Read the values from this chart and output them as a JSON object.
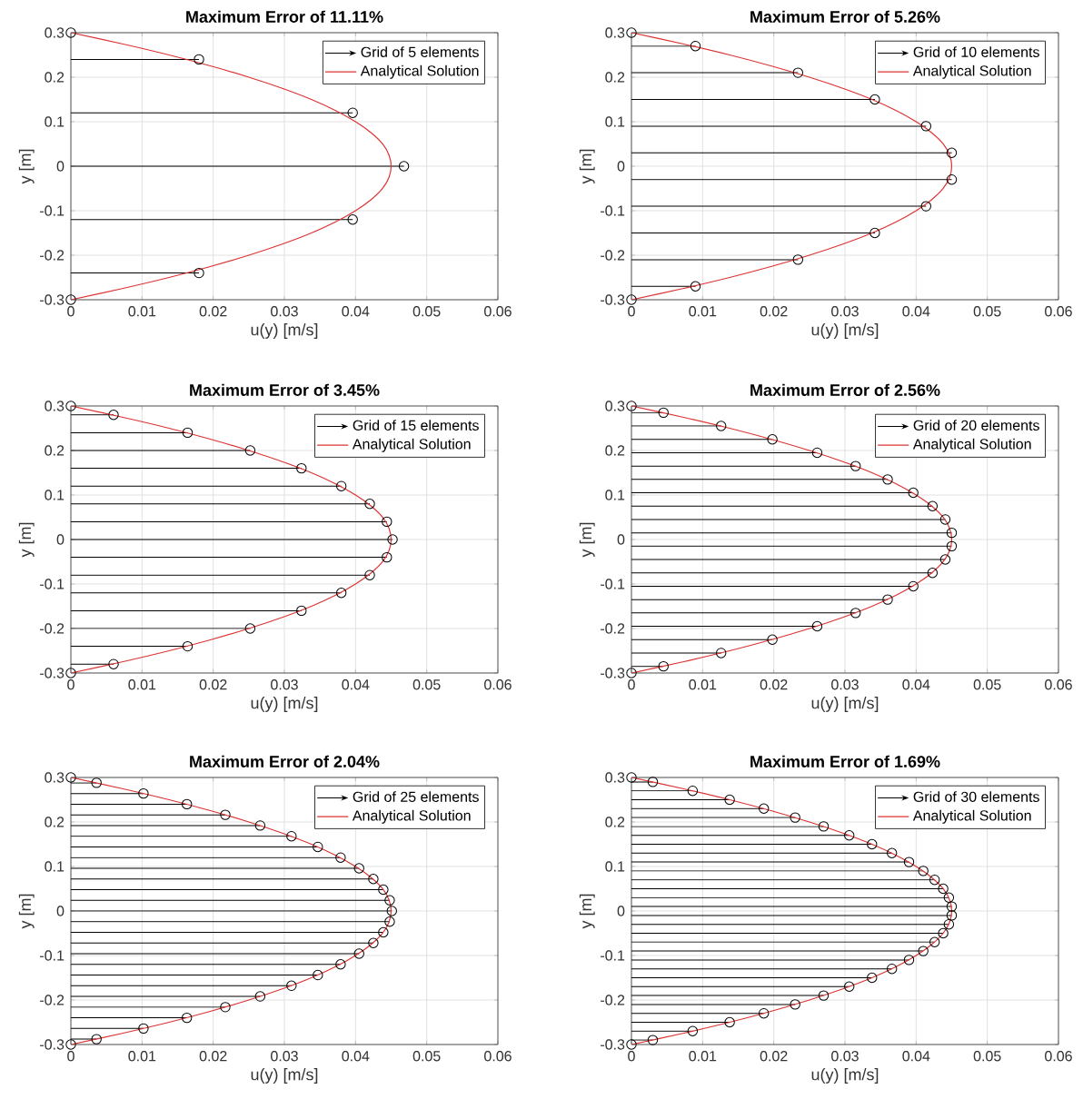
{
  "chart_data": [
    {
      "type": "lollipop",
      "title": "Maximum Error of 11.11%",
      "xlabel": "u(y) [m/s]",
      "ylabel": "y [m]",
      "orientation": "horizontal",
      "xlim": [
        0,
        0.06
      ],
      "ylim": [
        -0.3,
        0.3
      ],
      "xticks": [
        0,
        0.01,
        0.02,
        0.03,
        0.04,
        0.05,
        0.06
      ],
      "yticks": [
        -0.3,
        -0.2,
        -0.1,
        0,
        0.1,
        0.2,
        0.3
      ],
      "grid": true,
      "legend": "top right",
      "series": [
        {
          "name": "Grid of 5 elements",
          "color": "#000000",
          "marker": "circle",
          "x": [
            0.3,
            0.24,
            0.12,
            0,
            -0.12,
            -0.24,
            -0.3
          ],
          "values": [
            0,
            0.018,
            0.0396,
            0.0468,
            0.0396,
            0.018,
            0
          ]
        },
        {
          "name": "Analytical Solution",
          "type": "line",
          "color": "#dd3333",
          "x": [
            0.3,
            0.275,
            0.25,
            0.225,
            0.2,
            0.175,
            0.15,
            0.125,
            0.1,
            0.075,
            0.05,
            0.025,
            0,
            -0.025,
            -0.05,
            -0.075,
            -0.1,
            -0.125,
            -0.15,
            -0.175,
            -0.2,
            -0.225,
            -0.25,
            -0.275,
            -0.3
          ],
          "values": [
            0,
            0.0072,
            0.0138,
            0.0197,
            0.025,
            0.0297,
            0.0338,
            0.0372,
            0.04,
            0.0422,
            0.0438,
            0.0447,
            0.045,
            0.0447,
            0.0438,
            0.0422,
            0.04,
            0.0372,
            0.0338,
            0.0297,
            0.025,
            0.0197,
            0.0138,
            0.0072,
            0
          ]
        }
      ]
    },
    {
      "type": "lollipop",
      "title": "Maximum Error of 5.26%",
      "xlabel": "u(y) [m/s]",
      "ylabel": "y [m]",
      "orientation": "horizontal",
      "xlim": [
        0,
        0.06
      ],
      "ylim": [
        -0.3,
        0.3
      ],
      "xticks": [
        0,
        0.01,
        0.02,
        0.03,
        0.04,
        0.05,
        0.06
      ],
      "yticks": [
        -0.3,
        -0.2,
        -0.1,
        0,
        0.1,
        0.2,
        0.3
      ],
      "grid": true,
      "legend": "top right",
      "series": [
        {
          "name": "Grid of 10 elements",
          "color": "#000000",
          "marker": "circle",
          "x": [
            0.3,
            0.27,
            0.21,
            0.15,
            0.09,
            0.03,
            -0.03,
            -0.09,
            -0.15,
            -0.21,
            -0.27,
            -0.3
          ],
          "values": [
            0,
            0.009,
            0.0234,
            0.0342,
            0.0414,
            0.045,
            0.045,
            0.0414,
            0.0342,
            0.0234,
            0.009,
            0
          ]
        },
        {
          "name": "Analytical Solution",
          "type": "line",
          "color": "#dd3333",
          "x": [
            0.3,
            0.275,
            0.25,
            0.225,
            0.2,
            0.175,
            0.15,
            0.125,
            0.1,
            0.075,
            0.05,
            0.025,
            0,
            -0.025,
            -0.05,
            -0.075,
            -0.1,
            -0.125,
            -0.15,
            -0.175,
            -0.2,
            -0.225,
            -0.25,
            -0.275,
            -0.3
          ],
          "values": [
            0,
            0.0072,
            0.0138,
            0.0197,
            0.025,
            0.0297,
            0.0338,
            0.0372,
            0.04,
            0.0422,
            0.0438,
            0.0447,
            0.045,
            0.0447,
            0.0438,
            0.0422,
            0.04,
            0.0372,
            0.0338,
            0.0297,
            0.025,
            0.0197,
            0.0138,
            0.0072,
            0
          ]
        }
      ]
    },
    {
      "type": "lollipop",
      "title": "Maximum Error of 3.45%",
      "xlabel": "u(y) [m/s]",
      "ylabel": "y [m]",
      "orientation": "horizontal",
      "xlim": [
        0,
        0.06
      ],
      "ylim": [
        -0.3,
        0.3
      ],
      "xticks": [
        0,
        0.01,
        0.02,
        0.03,
        0.04,
        0.05,
        0.06
      ],
      "yticks": [
        -0.3,
        -0.2,
        -0.1,
        0,
        0.1,
        0.2,
        0.3
      ],
      "grid": true,
      "legend": "top right",
      "series": [
        {
          "name": "Grid of 15 elements",
          "color": "#000000",
          "marker": "circle",
          "x": [
            0.3,
            0.28,
            0.24,
            0.2,
            0.16,
            0.12,
            0.08,
            0.04,
            0,
            -0.04,
            -0.08,
            -0.12,
            -0.16,
            -0.2,
            -0.24,
            -0.28,
            -0.3
          ],
          "values": [
            0,
            0.006,
            0.0164,
            0.0252,
            0.0324,
            0.038,
            0.042,
            0.0444,
            0.0452,
            0.0444,
            0.042,
            0.038,
            0.0324,
            0.0252,
            0.0164,
            0.006,
            0
          ]
        },
        {
          "name": "Analytical Solution",
          "type": "line",
          "color": "#dd3333",
          "x": [
            0.3,
            0.275,
            0.25,
            0.225,
            0.2,
            0.175,
            0.15,
            0.125,
            0.1,
            0.075,
            0.05,
            0.025,
            0,
            -0.025,
            -0.05,
            -0.075,
            -0.1,
            -0.125,
            -0.15,
            -0.175,
            -0.2,
            -0.225,
            -0.25,
            -0.275,
            -0.3
          ],
          "values": [
            0,
            0.0072,
            0.0138,
            0.0197,
            0.025,
            0.0297,
            0.0338,
            0.0372,
            0.04,
            0.0422,
            0.0438,
            0.0447,
            0.045,
            0.0447,
            0.0438,
            0.0422,
            0.04,
            0.0372,
            0.0338,
            0.0297,
            0.025,
            0.0197,
            0.0138,
            0.0072,
            0
          ]
        }
      ]
    },
    {
      "type": "lollipop",
      "title": "Maximum Error of 2.56%",
      "xlabel": "u(y) [m/s]",
      "ylabel": "y [m]",
      "orientation": "horizontal",
      "xlim": [
        0,
        0.06
      ],
      "ylim": [
        -0.3,
        0.3
      ],
      "xticks": [
        0,
        0.01,
        0.02,
        0.03,
        0.04,
        0.05,
        0.06
      ],
      "yticks": [
        -0.3,
        -0.2,
        -0.1,
        0,
        0.1,
        0.2,
        0.3
      ],
      "grid": true,
      "legend": "top right",
      "series": [
        {
          "name": "Grid of 20 elements",
          "color": "#000000",
          "marker": "circle",
          "x": [
            0.3,
            0.285,
            0.255,
            0.225,
            0.195,
            0.165,
            0.135,
            0.105,
            0.075,
            0.045,
            0.015,
            -0.015,
            -0.045,
            -0.075,
            -0.105,
            -0.135,
            -0.165,
            -0.195,
            -0.225,
            -0.255,
            -0.285,
            -0.3
          ],
          "values": [
            0,
            0.0045,
            0.0126,
            0.0198,
            0.0261,
            0.0315,
            0.036,
            0.0396,
            0.0423,
            0.0441,
            0.045,
            0.045,
            0.0441,
            0.0423,
            0.0396,
            0.036,
            0.0315,
            0.0261,
            0.0198,
            0.0126,
            0.0045,
            0
          ]
        },
        {
          "name": "Analytical Solution",
          "type": "line",
          "color": "#dd3333",
          "x": [
            0.3,
            0.275,
            0.25,
            0.225,
            0.2,
            0.175,
            0.15,
            0.125,
            0.1,
            0.075,
            0.05,
            0.025,
            0,
            -0.025,
            -0.05,
            -0.075,
            -0.1,
            -0.125,
            -0.15,
            -0.175,
            -0.2,
            -0.225,
            -0.25,
            -0.275,
            -0.3
          ],
          "values": [
            0,
            0.0072,
            0.0138,
            0.0197,
            0.025,
            0.0297,
            0.0338,
            0.0372,
            0.04,
            0.0422,
            0.0438,
            0.0447,
            0.045,
            0.0447,
            0.0438,
            0.0422,
            0.04,
            0.0372,
            0.0338,
            0.0297,
            0.025,
            0.0197,
            0.0138,
            0.0072,
            0
          ]
        }
      ]
    },
    {
      "type": "lollipop",
      "title": "Maximum Error of 2.04%",
      "xlabel": "u(y) [m/s]",
      "ylabel": "y [m]",
      "orientation": "horizontal",
      "xlim": [
        0,
        0.06
      ],
      "ylim": [
        -0.3,
        0.3
      ],
      "xticks": [
        0,
        0.01,
        0.02,
        0.03,
        0.04,
        0.05,
        0.06
      ],
      "yticks": [
        -0.3,
        -0.2,
        -0.1,
        0,
        0.1,
        0.2,
        0.3
      ],
      "grid": true,
      "legend": "top right",
      "series": [
        {
          "name": "Grid of 25 elements",
          "color": "#000000",
          "marker": "circle",
          "x": [
            0.3,
            0.288,
            0.264,
            0.24,
            0.216,
            0.192,
            0.168,
            0.144,
            0.12,
            0.096,
            0.072,
            0.048,
            0.024,
            0,
            -0.024,
            -0.048,
            -0.072,
            -0.096,
            -0.12,
            -0.144,
            -0.168,
            -0.192,
            -0.216,
            -0.24,
            -0.264,
            -0.288,
            -0.3
          ],
          "values": [
            0,
            0.0036,
            0.0102,
            0.0163,
            0.0217,
            0.0266,
            0.031,
            0.0347,
            0.0379,
            0.0405,
            0.0425,
            0.0439,
            0.0448,
            0.0451,
            0.0448,
            0.0439,
            0.0425,
            0.0405,
            0.0379,
            0.0347,
            0.031,
            0.0266,
            0.0217,
            0.0163,
            0.0102,
            0.0036,
            0
          ]
        },
        {
          "name": "Analytical Solution",
          "type": "line",
          "color": "#dd3333",
          "x": [
            0.3,
            0.275,
            0.25,
            0.225,
            0.2,
            0.175,
            0.15,
            0.125,
            0.1,
            0.075,
            0.05,
            0.025,
            0,
            -0.025,
            -0.05,
            -0.075,
            -0.1,
            -0.125,
            -0.15,
            -0.175,
            -0.2,
            -0.225,
            -0.25,
            -0.275,
            -0.3
          ],
          "values": [
            0,
            0.0072,
            0.0138,
            0.0197,
            0.025,
            0.0297,
            0.0338,
            0.0372,
            0.04,
            0.0422,
            0.0438,
            0.0447,
            0.045,
            0.0447,
            0.0438,
            0.0422,
            0.04,
            0.0372,
            0.0338,
            0.0297,
            0.025,
            0.0197,
            0.0138,
            0.0072,
            0
          ]
        }
      ]
    },
    {
      "type": "lollipop",
      "title": "Maximum Error of 1.69%",
      "xlabel": "u(y) [m/s]",
      "ylabel": "y [m]",
      "orientation": "horizontal",
      "xlim": [
        0,
        0.06
      ],
      "ylim": [
        -0.3,
        0.3
      ],
      "xticks": [
        0,
        0.01,
        0.02,
        0.03,
        0.04,
        0.05,
        0.06
      ],
      "yticks": [
        -0.3,
        -0.2,
        -0.1,
        0,
        0.1,
        0.2,
        0.3
      ],
      "grid": true,
      "legend": "top right",
      "series": [
        {
          "name": "Grid of 30 elements",
          "color": "#000000",
          "marker": "circle",
          "x": [
            0.3,
            0.29,
            0.27,
            0.25,
            0.23,
            0.21,
            0.19,
            0.17,
            0.15,
            0.13,
            0.11,
            0.09,
            0.07,
            0.05,
            0.03,
            0.01,
            -0.01,
            -0.03,
            -0.05,
            -0.07,
            -0.09,
            -0.11,
            -0.13,
            -0.15,
            -0.17,
            -0.19,
            -0.21,
            -0.23,
            -0.25,
            -0.27,
            -0.29,
            -0.3
          ],
          "values": [
            0,
            0.003,
            0.0086,
            0.0138,
            0.0186,
            0.023,
            0.027,
            0.0306,
            0.0338,
            0.0366,
            0.039,
            0.041,
            0.0426,
            0.0438,
            0.0446,
            0.045,
            0.045,
            0.0446,
            0.0438,
            0.0426,
            0.041,
            0.039,
            0.0366,
            0.0338,
            0.0306,
            0.027,
            0.023,
            0.0186,
            0.0138,
            0.0086,
            0.003,
            0
          ]
        },
        {
          "name": "Analytical Solution",
          "type": "line",
          "color": "#dd3333",
          "x": [
            0.3,
            0.275,
            0.25,
            0.225,
            0.2,
            0.175,
            0.15,
            0.125,
            0.1,
            0.075,
            0.05,
            0.025,
            0,
            -0.025,
            -0.05,
            -0.075,
            -0.1,
            -0.125,
            -0.15,
            -0.175,
            -0.2,
            -0.225,
            -0.25,
            -0.275,
            -0.3
          ],
          "values": [
            0,
            0.0072,
            0.0138,
            0.0197,
            0.025,
            0.0297,
            0.0338,
            0.0372,
            0.04,
            0.0422,
            0.0438,
            0.0447,
            0.045,
            0.0447,
            0.0438,
            0.0422,
            0.04,
            0.0372,
            0.0338,
            0.0297,
            0.025,
            0.0197,
            0.0138,
            0.0072,
            0
          ]
        }
      ]
    }
  ]
}
